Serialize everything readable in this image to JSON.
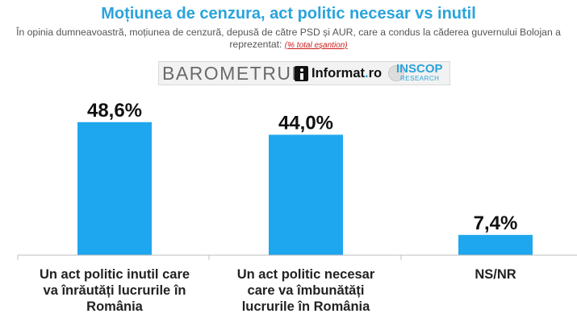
{
  "title": "Moțiunea de cenzura, act politic necesar vs inutil",
  "subtitle": "În opinia dumneavoastră, moțiunea de cenzură, depusă de către PSD și AUR, care a condus la căderea guvernului Bolojan a reprezentat:",
  "subtitle_note": "(% total eșantion)",
  "logos": {
    "barometru": "BAROMETRUL",
    "informat": "Informat",
    "informat_dot": ".",
    "informat_ro": "ro",
    "inscop": "INSCOP",
    "research": "RESEARCH"
  },
  "colors": {
    "bar": "#1ea7ee",
    "title": "#2aa3dc",
    "axis": "#bfbfbf",
    "note": "#cc1b1b"
  },
  "chart_data": {
    "type": "bar",
    "categories": [
      "Un act politic inutil care va înrăutăți lucrurile în România",
      "Un act politic necesar care va îmbunătăți lucrurile în România",
      "NS/NR"
    ],
    "values": [
      48.6,
      44.0,
      7.4
    ],
    "data_labels": [
      "48,6%",
      "44,0%",
      "7,4%"
    ],
    "ylim": [
      0,
      55
    ],
    "grid": false,
    "legend": "none"
  }
}
